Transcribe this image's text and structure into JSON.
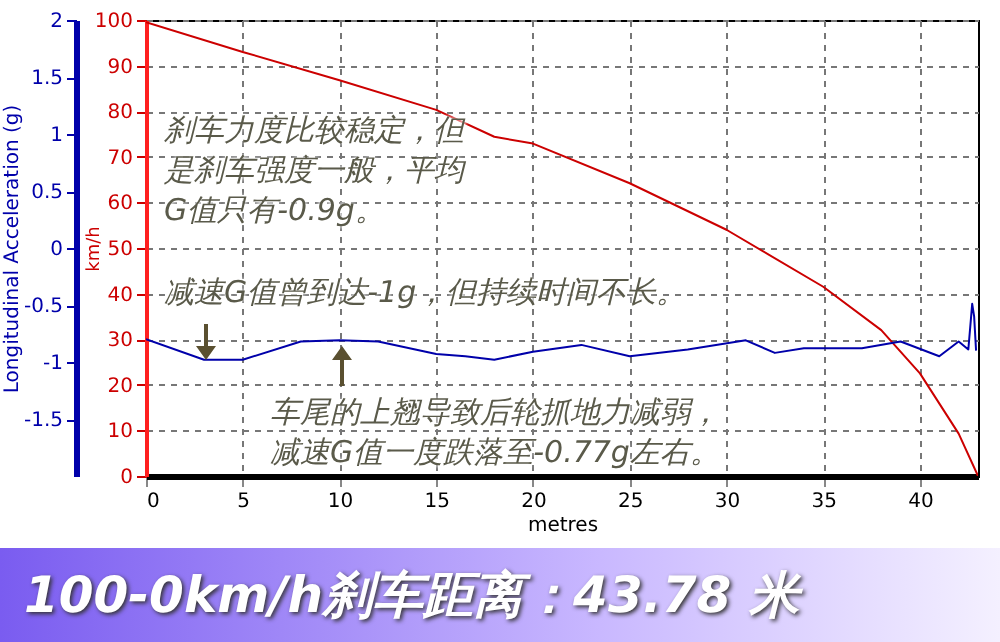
{
  "chart_data": {
    "type": "line",
    "title": "100-0km/h刹车距离：43.78 米",
    "xlabel": "metres",
    "ylabel": "km/h",
    "y2label": "Longitudinal Acceleration (g)",
    "xlim": [
      0,
      43
    ],
    "xticks": [
      0,
      5,
      10,
      15,
      20,
      25,
      30,
      35,
      40
    ],
    "ylim": [
      0,
      100
    ],
    "yticks": [
      0,
      10,
      20,
      30,
      40,
      50,
      60,
      70,
      80,
      90,
      100
    ],
    "y2lim": [
      -2,
      2
    ],
    "y2ticks": [
      -1.5,
      -1,
      -0.5,
      0,
      0.5,
      1,
      1.5,
      2
    ],
    "grid": true,
    "series": [
      {
        "color": "#cc0000",
        "x": [
          0,
          5,
          10,
          15,
          18,
          20,
          25,
          30,
          35,
          38,
          40,
          42,
          43
        ],
        "values": [
          99.5,
          93,
          86.8,
          80.3,
          74.4,
          72.9,
          64.2,
          54,
          41.5,
          32,
          22.5,
          9.3,
          0
        ]
      },
      {
        "color": "#0000aa",
        "axis": "y2",
        "x": [
          0,
          3,
          5,
          8,
          10,
          12,
          15,
          16.5,
          18,
          20,
          22.5,
          25,
          28,
          31,
          32.5,
          34,
          37,
          39,
          41,
          42,
          42.5,
          42.7,
          42.8,
          42.9
        ],
        "values": [
          -0.8,
          -0.98,
          -0.98,
          -0.82,
          -0.81,
          -0.82,
          -0.93,
          -0.95,
          -0.98,
          -0.91,
          -0.85,
          -0.95,
          -0.89,
          -0.81,
          -0.92,
          -0.88,
          -0.88,
          -0.82,
          -0.95,
          -0.82,
          -0.89,
          -0.49,
          -0.6,
          -0.9
        ]
      }
    ],
    "annotations": [
      "刹车力度比较稳定，但是刹车强度一般，平均G值只有-0.9g。",
      "减速G值曾到达-1g，但持续时间不长。",
      "车尾的上翘导致后轮抓地力减弱，减速G值一度跌落至-0.77g左右。"
    ]
  }
}
